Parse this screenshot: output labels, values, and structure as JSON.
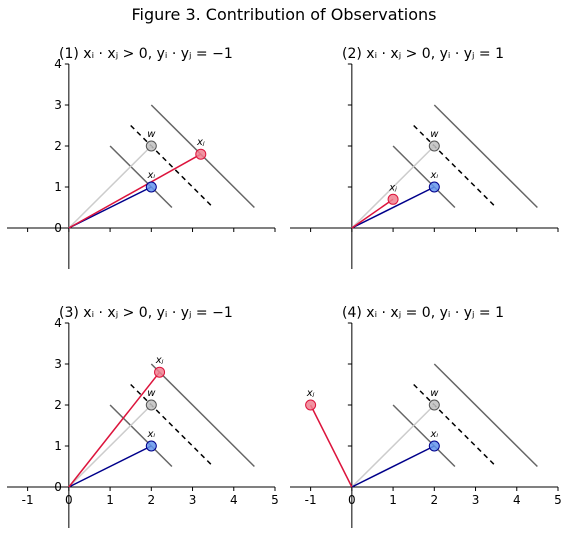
{
  "figure": {
    "title": "Figure 3. Contribution of Observations"
  },
  "colors": {
    "w_line": "#cccccc",
    "xi_line": "#00008b",
    "xj_line": "#dc143c",
    "hyperplane": "#666666",
    "boundary": "#000000",
    "w_point_fill": "#c0c0c0",
    "xi_point_fill": "#6495ed",
    "xj_point_fill": "#f08090"
  },
  "chart_data": [
    {
      "type": "line",
      "title": "(1) xᵢ · xⱼ > 0, yᵢ · yⱼ = −1",
      "xlim": [
        -1.5,
        5
      ],
      "ylim": [
        -1,
        4
      ],
      "xticks": [
        -1,
        0,
        1,
        2,
        3,
        4,
        5
      ],
      "yticks": [
        0,
        1,
        2,
        3,
        4
      ],
      "show_xticklabels": false,
      "show_yticklabels": true,
      "points": [
        {
          "name": "w",
          "label": "w",
          "x": 2.0,
          "y": 2.0
        },
        {
          "name": "xi",
          "label": "xᵢ",
          "x": 2.0,
          "y": 1.0
        },
        {
          "name": "xj",
          "label": "xⱼ",
          "x": 3.2,
          "y": 1.8
        }
      ],
      "lines": [
        {
          "name": "hyperplane-1",
          "style": "solid",
          "x": [
            1.0,
            2.5
          ],
          "y": [
            2.0,
            0.5
          ]
        },
        {
          "name": "hyperplane-2",
          "style": "solid",
          "x": [
            2.0,
            4.5
          ],
          "y": [
            3.0,
            0.5
          ]
        },
        {
          "name": "margin",
          "style": "dashed",
          "x": [
            1.5,
            3.5
          ],
          "y": [
            2.5,
            0.5
          ]
        }
      ]
    },
    {
      "type": "line",
      "title": "(2) xᵢ · xⱼ > 0, yᵢ · yⱼ = 1",
      "xlim": [
        -1.5,
        5
      ],
      "ylim": [
        -1,
        4
      ],
      "xticks": [
        -1,
        0,
        1,
        2,
        3,
        4,
        5
      ],
      "yticks": [
        0,
        1,
        2,
        3,
        4
      ],
      "show_xticklabels": false,
      "show_yticklabels": false,
      "points": [
        {
          "name": "w",
          "label": "w",
          "x": 2.0,
          "y": 2.0
        },
        {
          "name": "xi",
          "label": "xᵢ",
          "x": 2.0,
          "y": 1.0
        },
        {
          "name": "xj",
          "label": "xⱼ",
          "x": 1.0,
          "y": 0.7
        }
      ],
      "lines": [
        {
          "name": "hyperplane-1",
          "style": "solid",
          "x": [
            1.0,
            2.5
          ],
          "y": [
            2.0,
            0.5
          ]
        },
        {
          "name": "hyperplane-2",
          "style": "solid",
          "x": [
            2.0,
            4.5
          ],
          "y": [
            3.0,
            0.5
          ]
        },
        {
          "name": "margin",
          "style": "dashed",
          "x": [
            1.5,
            3.5
          ],
          "y": [
            2.5,
            0.5
          ]
        }
      ]
    },
    {
      "type": "line",
      "title": "(3) xᵢ · xⱼ > 0, yᵢ · yⱼ = −1",
      "xlim": [
        -1.5,
        5
      ],
      "ylim": [
        -1,
        4
      ],
      "xticks": [
        -1,
        0,
        1,
        2,
        3,
        4,
        5
      ],
      "yticks": [
        0,
        1,
        2,
        3,
        4
      ],
      "show_xticklabels": true,
      "show_yticklabels": true,
      "points": [
        {
          "name": "w",
          "label": "w",
          "x": 2.0,
          "y": 2.0
        },
        {
          "name": "xi",
          "label": "xᵢ",
          "x": 2.0,
          "y": 1.0
        },
        {
          "name": "xj",
          "label": "xⱼ",
          "x": 2.2,
          "y": 2.8
        }
      ],
      "lines": [
        {
          "name": "hyperplane-1",
          "style": "solid",
          "x": [
            1.0,
            2.5
          ],
          "y": [
            2.0,
            0.5
          ]
        },
        {
          "name": "hyperplane-2",
          "style": "solid",
          "x": [
            2.0,
            4.5
          ],
          "y": [
            3.0,
            0.5
          ]
        },
        {
          "name": "margin",
          "style": "dashed",
          "x": [
            1.5,
            3.5
          ],
          "y": [
            2.5,
            0.5
          ]
        }
      ]
    },
    {
      "type": "line",
      "title": "(4) xᵢ · xⱼ = 0, yᵢ · yⱼ = 1",
      "xlim": [
        -1.5,
        5
      ],
      "ylim": [
        -1,
        4
      ],
      "xticks": [
        -1,
        0,
        1,
        2,
        3,
        4,
        5
      ],
      "yticks": [
        0,
        1,
        2,
        3,
        4
      ],
      "show_xticklabels": true,
      "show_yticklabels": false,
      "points": [
        {
          "name": "w",
          "label": "w",
          "x": 2.0,
          "y": 2.0
        },
        {
          "name": "xi",
          "label": "xᵢ",
          "x": 2.0,
          "y": 1.0
        },
        {
          "name": "xj",
          "label": "xⱼ",
          "x": -1.0,
          "y": 2.0
        }
      ],
      "lines": [
        {
          "name": "hyperplane-1",
          "style": "solid",
          "x": [
            1.0,
            2.5
          ],
          "y": [
            2.0,
            0.5
          ]
        },
        {
          "name": "hyperplane-2",
          "style": "solid",
          "x": [
            2.0,
            4.5
          ],
          "y": [
            3.0,
            0.5
          ]
        },
        {
          "name": "margin",
          "style": "dashed",
          "x": [
            1.5,
            3.5
          ],
          "y": [
            2.5,
            0.5
          ]
        }
      ]
    }
  ]
}
